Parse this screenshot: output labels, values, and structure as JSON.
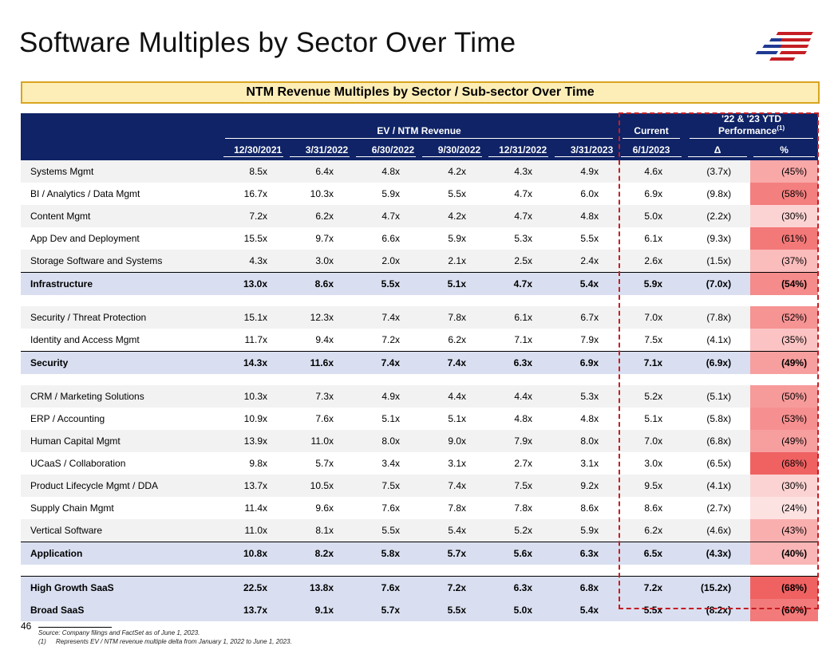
{
  "page": {
    "title": "Software Multiples by Sector Over Time",
    "banner": "NTM Revenue Multiples by Sector / Sub-sector Over Time",
    "page_number": "46",
    "footnote_source": "Source: Company filings and FactSet as of June 1, 2023.",
    "footnote_1_index": "(1)",
    "footnote_1_text": "Represents EV / NTM revenue multiple delta from January 1, 2022 to June 1, 2023."
  },
  "logo": {
    "icon": "flag-stripes-icon",
    "colors": [
      "#1f3a93",
      "#c41e24"
    ]
  },
  "colors": {
    "header_bg": "#0f2366",
    "total_row_bg": "#d9dff0",
    "banner_bg": "#fdeeb8",
    "banner_border": "#d9a520",
    "highlight_border": "#c41e24"
  },
  "header": {
    "group_ev": "EV / NTM Revenue",
    "group_current": "Current",
    "group_perf": "'22 & '23 YTD Performance",
    "group_perf_sup": "(1)",
    "dates": [
      "12/30/2021",
      "3/31/2022",
      "6/30/2022",
      "9/30/2022",
      "12/31/2022",
      "3/31/2023"
    ],
    "current_date": "6/1/2023",
    "delta": "Δ",
    "pct": "%"
  },
  "rows": [
    {
      "label": "Systems Mgmt",
      "vals": [
        "8.5x",
        "6.4x",
        "4.8x",
        "4.2x",
        "4.3x",
        "4.9x"
      ],
      "cur": "4.6x",
      "delta": "(3.7x)",
      "pct": "(45%)",
      "heat": "#f9a8a8"
    },
    {
      "label": "BI / Analytics / Data Mgmt",
      "vals": [
        "16.7x",
        "10.3x",
        "5.9x",
        "5.5x",
        "4.7x",
        "6.0x"
      ],
      "cur": "6.9x",
      "delta": "(9.8x)",
      "pct": "(58%)",
      "heat": "#f47f7f"
    },
    {
      "label": "Content Mgmt",
      "vals": [
        "7.2x",
        "6.2x",
        "4.7x",
        "4.2x",
        "4.7x",
        "4.8x"
      ],
      "cur": "5.0x",
      "delta": "(2.2x)",
      "pct": "(30%)",
      "heat": "#fcd3d3"
    },
    {
      "label": "App Dev and Deployment",
      "vals": [
        "15.5x",
        "9.7x",
        "6.6x",
        "5.9x",
        "5.3x",
        "5.5x"
      ],
      "cur": "6.1x",
      "delta": "(9.3x)",
      "pct": "(61%)",
      "heat": "#f37878"
    },
    {
      "label": "Storage Software and Systems",
      "vals": [
        "4.3x",
        "3.0x",
        "2.0x",
        "2.1x",
        "2.5x",
        "2.4x"
      ],
      "cur": "2.6x",
      "delta": "(1.5x)",
      "pct": "(37%)",
      "heat": "#fbbcbc"
    },
    {
      "label": "Infrastructure",
      "vals": [
        "13.0x",
        "8.6x",
        "5.5x",
        "5.1x",
        "4.7x",
        "5.4x"
      ],
      "cur": "5.9x",
      "delta": "(7.0x)",
      "pct": "(54%)",
      "heat": "#f58b8b",
      "total": true
    },
    {
      "label": "Security / Threat Protection",
      "vals": [
        "15.1x",
        "12.3x",
        "7.4x",
        "7.8x",
        "6.1x",
        "6.7x"
      ],
      "cur": "7.0x",
      "delta": "(7.8x)",
      "pct": "(52%)",
      "heat": "#f69393"
    },
    {
      "label": "Identity and Access Mgmt",
      "vals": [
        "11.7x",
        "9.4x",
        "7.2x",
        "6.2x",
        "7.1x",
        "7.9x"
      ],
      "cur": "7.5x",
      "delta": "(4.1x)",
      "pct": "(35%)",
      "heat": "#fbc3c3"
    },
    {
      "label": "Security",
      "vals": [
        "14.3x",
        "11.6x",
        "7.4x",
        "7.4x",
        "6.3x",
        "6.9x"
      ],
      "cur": "7.1x",
      "delta": "(6.9x)",
      "pct": "(49%)",
      "heat": "#f79f9f",
      "total": true
    },
    {
      "label": "CRM / Marketing Solutions",
      "vals": [
        "10.3x",
        "7.3x",
        "4.9x",
        "4.4x",
        "4.4x",
        "5.3x"
      ],
      "cur": "5.2x",
      "delta": "(5.1x)",
      "pct": "(50%)",
      "heat": "#f79a9a"
    },
    {
      "label": "ERP / Accounting",
      "vals": [
        "10.9x",
        "7.6x",
        "5.1x",
        "5.1x",
        "4.8x",
        "4.8x"
      ],
      "cur": "5.1x",
      "delta": "(5.8x)",
      "pct": "(53%)",
      "heat": "#f69090"
    },
    {
      "label": "Human Capital Mgmt",
      "vals": [
        "13.9x",
        "11.0x",
        "8.0x",
        "9.0x",
        "7.9x",
        "8.0x"
      ],
      "cur": "7.0x",
      "delta": "(6.8x)",
      "pct": "(49%)",
      "heat": "#f79f9f"
    },
    {
      "label": "UCaaS / Collaboration",
      "vals": [
        "9.8x",
        "5.7x",
        "3.4x",
        "3.1x",
        "2.7x",
        "3.1x"
      ],
      "cur": "3.0x",
      "delta": "(6.5x)",
      "pct": "(68%)",
      "heat": "#f06262"
    },
    {
      "label": "Product Lifecycle Mgmt / DDA",
      "vals": [
        "13.7x",
        "10.5x",
        "7.5x",
        "7.4x",
        "7.5x",
        "9.2x"
      ],
      "cur": "9.5x",
      "delta": "(4.1x)",
      "pct": "(30%)",
      "heat": "#fcd3d3"
    },
    {
      "label": "Supply Chain Mgmt",
      "vals": [
        "11.4x",
        "9.6x",
        "7.6x",
        "7.8x",
        "7.8x",
        "8.6x"
      ],
      "cur": "8.6x",
      "delta": "(2.7x)",
      "pct": "(24%)",
      "heat": "#fde2e2"
    },
    {
      "label": "Vertical Software",
      "vals": [
        "11.0x",
        "8.1x",
        "5.5x",
        "5.4x",
        "5.2x",
        "5.9x"
      ],
      "cur": "6.2x",
      "delta": "(4.6x)",
      "pct": "(43%)",
      "heat": "#faafaf"
    },
    {
      "label": "Application",
      "vals": [
        "10.8x",
        "8.2x",
        "5.8x",
        "5.7x",
        "5.6x",
        "6.3x"
      ],
      "cur": "6.5x",
      "delta": "(4.3x)",
      "pct": "(40%)",
      "heat": "#fab6b6",
      "total": true
    },
    {
      "label": "High Growth SaaS",
      "vals": [
        "22.5x",
        "13.8x",
        "7.6x",
        "7.2x",
        "6.3x",
        "6.8x"
      ],
      "cur": "7.2x",
      "delta": "(15.2x)",
      "pct": "(68%)",
      "heat": "#f06262",
      "total2": true
    },
    {
      "label": "Broad SaaS",
      "vals": [
        "13.7x",
        "9.1x",
        "5.7x",
        "5.5x",
        "5.0x",
        "5.4x"
      ],
      "cur": "5.5x",
      "delta": "(8.2x)",
      "pct": "(60%)",
      "heat": "#f37a7a",
      "total2": true
    }
  ]
}
